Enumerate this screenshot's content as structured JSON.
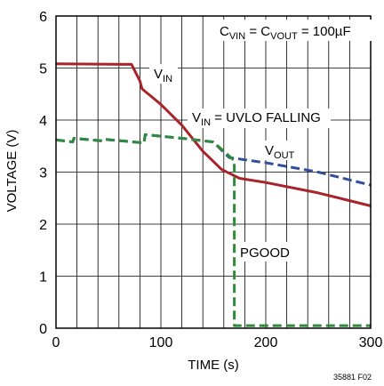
{
  "chart_data": {
    "type": "line",
    "xlabel": "TIME (s)",
    "ylabel": "VOLTAGE (V)",
    "xlim": [
      0,
      300
    ],
    "ylim": [
      0,
      6
    ],
    "x_ticks": [
      "0",
      "100",
      "200",
      "300"
    ],
    "y_ticks": [
      "0",
      "1",
      "2",
      "3",
      "4",
      "5",
      "6"
    ],
    "grid": true,
    "annotations": {
      "cap_base1": "C",
      "cap_sub1": "VIN",
      "cap_mid": " = C",
      "cap_sub2": "VOUT",
      "cap_end": " = 100µF",
      "vin_base": "V",
      "vin_sub": "IN",
      "uvlo_base": "V",
      "uvlo_sub": "IN",
      "uvlo_end": " = UVLO FALLING",
      "vout_base": "V",
      "vout_sub": "OUT",
      "pgood": "PGOOD",
      "figure_id": "35881 F02"
    },
    "series": [
      {
        "name": "VIN",
        "color": "#a8232a",
        "style": "solid",
        "points": [
          [
            0,
            5.08
          ],
          [
            72,
            5.07
          ],
          [
            80,
            4.75
          ],
          [
            82,
            4.6
          ],
          [
            100,
            4.3
          ],
          [
            120,
            3.9
          ],
          [
            140,
            3.4
          ],
          [
            158,
            3.05
          ],
          [
            175,
            2.88
          ],
          [
            200,
            2.8
          ],
          [
            250,
            2.6
          ],
          [
            300,
            2.35
          ]
        ]
      },
      {
        "name": "VOUT",
        "color": "#2e4f9b",
        "style": "dashed",
        "points": [
          [
            0,
            3.62
          ],
          [
            16,
            3.58
          ],
          [
            17,
            3.65
          ],
          [
            44,
            3.6
          ],
          [
            46,
            3.63
          ],
          [
            84,
            3.56
          ],
          [
            85,
            3.72
          ],
          [
            120,
            3.65
          ],
          [
            150,
            3.58
          ],
          [
            165,
            3.28
          ],
          [
            200,
            3.18
          ],
          [
            250,
            3.0
          ],
          [
            300,
            2.75
          ]
        ]
      },
      {
        "name": "PGOOD",
        "color": "#2f8a3b",
        "style": "dashed",
        "points": [
          [
            0,
            3.62
          ],
          [
            16,
            3.58
          ],
          [
            17,
            3.65
          ],
          [
            44,
            3.6
          ],
          [
            46,
            3.63
          ],
          [
            84,
            3.56
          ],
          [
            85,
            3.72
          ],
          [
            120,
            3.65
          ],
          [
            150,
            3.58
          ],
          [
            170,
            3.22
          ],
          [
            170,
            0.05
          ],
          [
            300,
            0.05
          ]
        ]
      }
    ]
  }
}
